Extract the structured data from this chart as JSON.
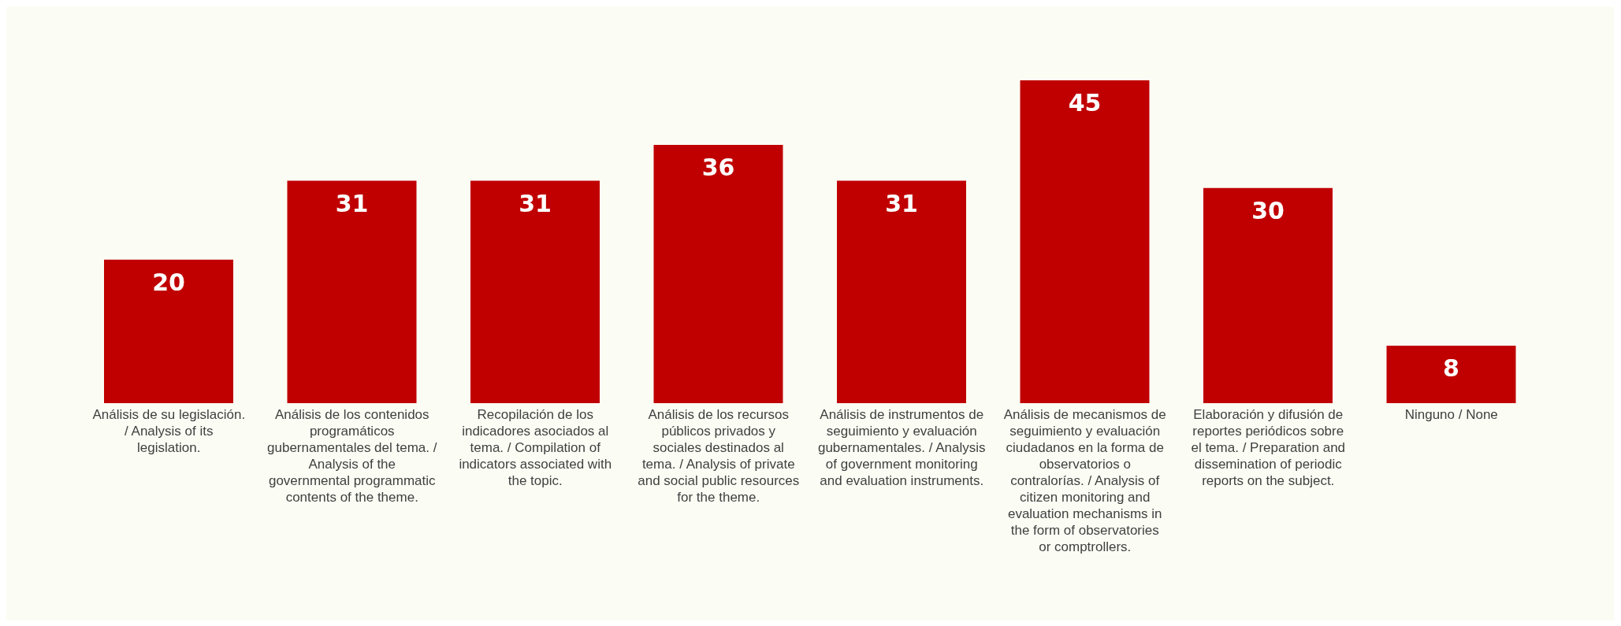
{
  "chart_data": {
    "type": "bar",
    "categories": [
      "Análisis de su legislación. / Analysis of its legislation.",
      "Análisis de los contenidos programáticos gubernamentales del tema. / Analysis of the governmental programmatic contents of the theme.",
      "Recopilación de los indicadores asociados al tema. / Compilation of indicators associated with the topic.",
      "Análisis de los recursos públicos privados y sociales destinados al tema. / Analysis of private and social public resources for the theme.",
      "Análisis de instrumentos de seguimiento y evaluación gubernamentales. / Analysis of government monitoring and evaluation instruments.",
      "Análisis de mecanismos de seguimiento y evaluación ciudadanos en la forma de observatorios o contralorías. / Analysis of citizen monitoring and evaluation mechanisms in the form of observatories or comptrollers.",
      "Elaboración y difusión de reportes periódicos sobre el tema. / Preparation and dissemination of periodic reports on the subject.",
      "Ninguno / None"
    ],
    "values": [
      20,
      31,
      31,
      36,
      31,
      45,
      30,
      8
    ],
    "color": "#c00000",
    "data_labels": true
  }
}
